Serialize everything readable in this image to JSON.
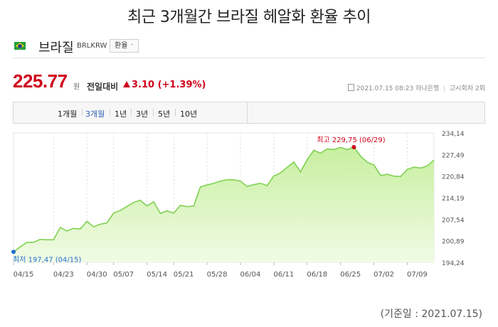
{
  "page": {
    "title": "최근 3개월간 브라질 헤알화 환율 추이",
    "footnote": "(기준일 : 2021.07.15)"
  },
  "currency": {
    "name": "브라질",
    "code": "BRLKRW",
    "rate_type": "환율",
    "flag_icon": "brazil-flag-icon"
  },
  "quote": {
    "price": "225.77",
    "unit": "원",
    "change_label": "전일대비",
    "change_direction_icon": "up-triangle-icon",
    "change_value": "3.10 (+1.39%)",
    "datetime": "2021.07.15 08:23",
    "bank": "하나은행",
    "notice_round": "고시회차 2회"
  },
  "colors": {
    "up": "#d0021b",
    "active_tab": "#2f5fb3",
    "line": "#7fd151",
    "area_top": "#c7ef9f",
    "area_bottom": "#f1fbe5",
    "low_marker": "#1f6fd1"
  },
  "period_tabs": [
    {
      "label": "1개월",
      "active": false
    },
    {
      "label": "3개월",
      "active": true
    },
    {
      "label": "1년",
      "active": false
    },
    {
      "label": "3년",
      "active": false
    },
    {
      "label": "5년",
      "active": false
    },
    {
      "label": "10년",
      "active": false
    }
  ],
  "chart_data": {
    "type": "area",
    "y_tick_labels": [
      "234,14",
      "227,49",
      "220,84",
      "214,19",
      "207,54",
      "200,89",
      "194,24"
    ],
    "y_ticks": [
      234.14,
      227.49,
      220.84,
      214.19,
      207.54,
      200.89,
      194.24
    ],
    "ylim": [
      194.24,
      234.14
    ],
    "x_tick_labels": [
      "04/15",
      "04/23",
      "04/30",
      "05/07",
      "05/14",
      "05/21",
      "05/28",
      "06/04",
      "06/11",
      "06/18",
      "06/25",
      "07/02",
      "07/09"
    ],
    "grid": "vertical-dashed",
    "high_label": "최고 229,75 (06/29)",
    "low_label": "최저 197,47 (04/15)",
    "x": [
      "04/15",
      "04/16",
      "04/19",
      "04/20",
      "04/21",
      "04/22",
      "04/23",
      "04/26",
      "04/27",
      "04/28",
      "04/29",
      "04/30",
      "05/03",
      "05/04",
      "05/06",
      "05/07",
      "05/10",
      "05/11",
      "05/12",
      "05/13",
      "05/14",
      "05/17",
      "05/18",
      "05/20",
      "05/21",
      "05/24",
      "05/25",
      "05/26",
      "05/27",
      "05/28",
      "05/31",
      "06/01",
      "06/02",
      "06/03",
      "06/04",
      "06/07",
      "06/08",
      "06/09",
      "06/10",
      "06/11",
      "06/14",
      "06/15",
      "06/16",
      "06/17",
      "06/18",
      "06/21",
      "06/22",
      "06/23",
      "06/24",
      "06/25",
      "06/28",
      "06/29",
      "06/30",
      "07/01",
      "07/02",
      "07/05",
      "07/06",
      "07/07",
      "07/08",
      "07/09",
      "07/12",
      "07/13",
      "07/14",
      "07/15"
    ],
    "values": [
      197.47,
      199.0,
      200.4,
      200.4,
      201.3,
      201.2,
      201.2,
      205.0,
      203.9,
      204.7,
      204.5,
      206.9,
      205.2,
      206.0,
      206.4,
      209.4,
      210.2,
      211.5,
      212.7,
      213.4,
      211.6,
      212.9,
      209.3,
      210.1,
      209.4,
      211.8,
      211.4,
      211.6,
      217.5,
      218.1,
      218.6,
      219.3,
      219.7,
      219.7,
      219.3,
      217.6,
      218.2,
      218.6,
      217.9,
      220.9,
      221.8,
      223.5,
      225.2,
      222.1,
      225.9,
      228.8,
      227.9,
      229.2,
      229.0,
      229.7,
      229.0,
      229.75,
      227.0,
      225.1,
      224.3,
      221.0,
      221.4,
      220.8,
      220.7,
      222.9,
      223.6,
      223.3,
      224.0,
      225.77
    ]
  }
}
